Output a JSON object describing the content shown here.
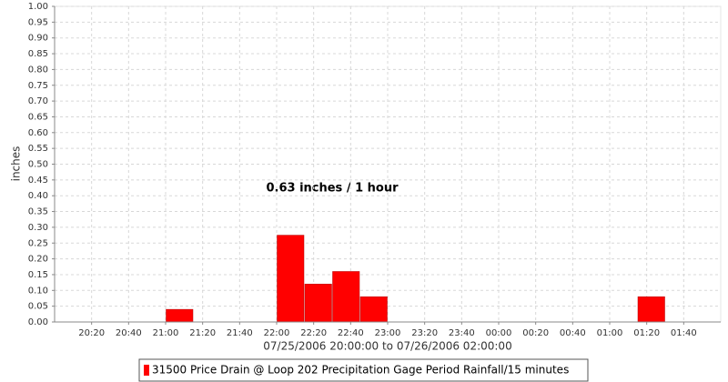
{
  "chart_data": {
    "type": "bar",
    "annotation": "0.63 inches / 1 hour",
    "y_label": "inches",
    "x_label": "07/25/2006 20:00:00 to 07/26/2006 02:00:00",
    "series": [
      {
        "name": "31500 Price Drain @ Loop 202 Precipitation Gage Period Rainfall/15 minutes",
        "color": "#ff0000",
        "x": [
          "07/25/2006 21:00:00",
          "07/25/2006 22:00:00",
          "07/25/2006 22:15:00",
          "07/25/2006 22:30:00",
          "07/25/2006 22:45:00",
          "07/26/2006 01:15:00"
        ],
        "values": [
          0.04,
          0.275,
          0.12,
          0.16,
          0.08,
          0.08
        ]
      }
    ],
    "xlim": [
      "07/25/2006 20:00:00",
      "07/26/2006 02:00:00"
    ],
    "xticks": [
      {
        "value": "07/25/2006 20:20:00",
        "label": "20:20"
      },
      {
        "value": "07/25/2006 20:40:00",
        "label": "20:40"
      },
      {
        "value": "07/25/2006 21:00:00",
        "label": "21:00"
      },
      {
        "value": "07/25/2006 21:20:00",
        "label": "21:20"
      },
      {
        "value": "07/25/2006 21:40:00",
        "label": "21:40"
      },
      {
        "value": "07/25/2006 22:00:00",
        "label": "22:00"
      },
      {
        "value": "07/25/2006 22:20:00",
        "label": "22:20"
      },
      {
        "value": "07/25/2006 22:40:00",
        "label": "22:40"
      },
      {
        "value": "07/25/2006 23:00:00",
        "label": "23:00"
      },
      {
        "value": "07/25/2006 23:20:00",
        "label": "23:20"
      },
      {
        "value": "07/25/2006 23:40:00",
        "label": "23:40"
      },
      {
        "value": "07/26/2006 00:00:00",
        "label": "00:00"
      },
      {
        "value": "07/26/2006 00:20:00",
        "label": "00:20"
      },
      {
        "value": "07/26/2006 00:40:00",
        "label": "00:40"
      },
      {
        "value": "07/26/2006 01:00:00",
        "label": "01:00"
      },
      {
        "value": "07/26/2006 01:20:00",
        "label": "01:20"
      },
      {
        "value": "07/26/2006 01:40:00",
        "label": "01:40"
      }
    ],
    "ylim": [
      0,
      1
    ],
    "yticks": [
      {
        "value": 0,
        "label": "0.00"
      },
      {
        "value": 0.05,
        "label": "0.05"
      },
      {
        "value": 0.1,
        "label": "0.10"
      },
      {
        "value": 0.15,
        "label": "0.15"
      },
      {
        "value": 0.2,
        "label": "0.20"
      },
      {
        "value": 0.25,
        "label": "0.25"
      },
      {
        "value": 0.3,
        "label": "0.30"
      },
      {
        "value": 0.35,
        "label": "0.35"
      },
      {
        "value": 0.4,
        "label": "0.40"
      },
      {
        "value": 0.45,
        "label": "0.45"
      },
      {
        "value": 0.5,
        "label": "0.50"
      },
      {
        "value": 0.55,
        "label": "0.55"
      },
      {
        "value": 0.6,
        "label": "0.60"
      },
      {
        "value": 0.65,
        "label": "0.65"
      },
      {
        "value": 0.7,
        "label": "0.70"
      },
      {
        "value": 0.75,
        "label": "0.75"
      },
      {
        "value": 0.8,
        "label": "0.80"
      },
      {
        "value": 0.85,
        "label": "0.85"
      },
      {
        "value": 0.9,
        "label": "0.90"
      },
      {
        "value": 0.95,
        "label": "0.95"
      },
      {
        "value": 1,
        "label": "1.00"
      }
    ],
    "grid": true
  }
}
